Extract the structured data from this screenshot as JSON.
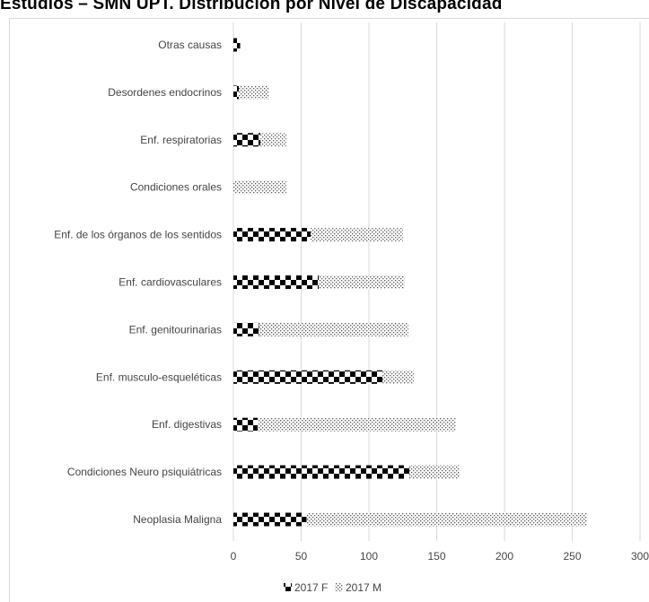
{
  "title": "Estudios – SMN UPT. Distribución por Nivel de Discapacidad",
  "chart_data": {
    "type": "bar",
    "orientation": "horizontal",
    "stacked": true,
    "categories": [
      "Otras causas",
      "Desordenes endocrinos",
      "Enf. respiratorias",
      "Condiciones orales",
      "Enf. de los órganos de los sentidos",
      "Enf. cardiovasculares",
      "Enf. genitourinarias",
      "Enf. musculo-esqueléticas",
      "Enf. digestivas",
      "Condiciones Neuro psiquiátricas",
      "Neoplasia Maligna"
    ],
    "series": [
      {
        "name": "2017 F",
        "values": [
          5,
          4,
          20,
          0,
          57,
          63,
          19,
          110,
          18,
          130,
          54
        ]
      },
      {
        "name": "2017 M",
        "values": [
          0,
          22,
          19,
          39,
          68,
          63,
          110,
          23,
          146,
          37,
          207
        ]
      }
    ],
    "xlim": [
      0,
      300
    ],
    "xticks": [
      0,
      50,
      100,
      150,
      200,
      250,
      300
    ],
    "grid": "vertical",
    "legend": "bottom"
  },
  "colors": {
    "F": "#000000",
    "M": "#8a8a8a",
    "grid": "#d9d9d9",
    "border": "#d9d9d9"
  }
}
